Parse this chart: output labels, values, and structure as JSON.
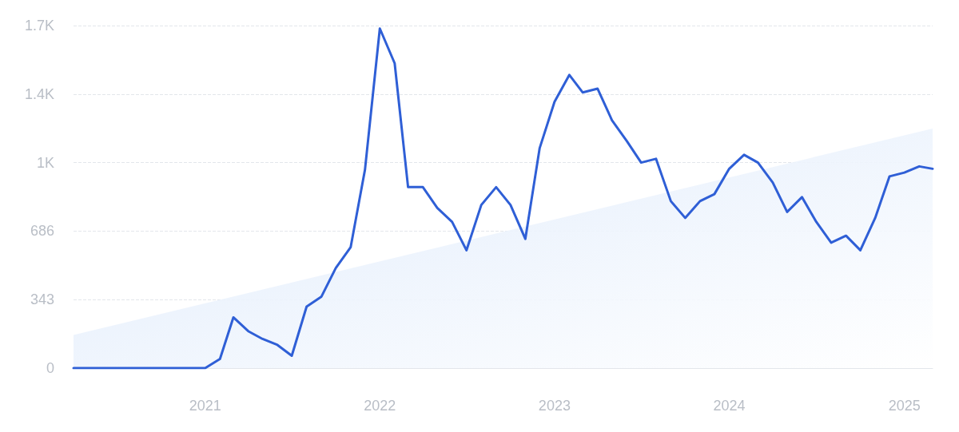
{
  "chart_data": {
    "type": "line",
    "x": [
      "2020-04",
      "2020-05",
      "2020-06",
      "2020-07",
      "2020-08",
      "2020-09",
      "2020-10",
      "2020-11",
      "2020-12",
      "2021-01",
      "2021-02",
      "2021-03",
      "2021-04",
      "2021-05",
      "2021-06",
      "2021-07",
      "2021-08",
      "2021-09",
      "2021-10",
      "2021-11",
      "2021-12",
      "2022-01",
      "2022-02",
      "2022-03",
      "2022-04",
      "2022-05",
      "2022-06",
      "2022-07",
      "2022-08",
      "2022-09",
      "2022-10",
      "2022-11",
      "2022-12",
      "2023-01",
      "2023-02",
      "2023-03",
      "2023-04",
      "2023-05",
      "2023-06",
      "2023-07",
      "2023-08",
      "2023-09",
      "2023-10",
      "2023-11",
      "2023-12",
      "2024-01",
      "2024-02",
      "2024-03",
      "2024-04",
      "2024-05",
      "2024-06",
      "2024-07",
      "2024-08",
      "2024-09",
      "2024-10",
      "2024-11",
      "2024-12",
      "2025-01",
      "2025-02",
      "2025-03"
    ],
    "series": [
      {
        "type": "area",
        "color": "#dce9fb",
        "x": [
          "2020-04",
          "2025-03"
        ],
        "values": [
          166,
          1199
        ]
      },
      {
        "color": "#2f5fd6",
        "values": [
          0,
          0,
          0,
          0,
          0,
          0,
          0,
          0,
          0,
          0,
          46,
          254,
          185,
          146,
          116,
          62,
          308,
          358,
          501,
          605,
          994,
          1700,
          1526,
          906,
          906,
          802,
          732,
          590,
          817,
          906,
          817,
          647,
          1102,
          1333,
          1468,
          1380,
          1399,
          1241,
          1137,
          1029,
          1048,
          836,
          752,
          836,
          871,
          998,
          1068,
          1029,
          929,
          782,
          856,
          732,
          628,
          663,
          590,
          752,
          960,
          979,
          1010,
          998
        ]
      }
    ],
    "xlim": [
      "2020-04",
      "2025-03"
    ],
    "xticks": [
      "2021",
      "2022",
      "2023",
      "2024",
      "2025"
    ],
    "ylim": [
      0,
      1715
    ],
    "yticks": [
      0,
      343,
      686,
      {
        "value": 1029,
        "label": "1K"
      },
      {
        "value": 1372,
        "label": "1.4K"
      },
      {
        "value": 1715,
        "label": "1.7K"
      }
    ],
    "grid": "y",
    "marker": "none",
    "line_style": "solid"
  }
}
